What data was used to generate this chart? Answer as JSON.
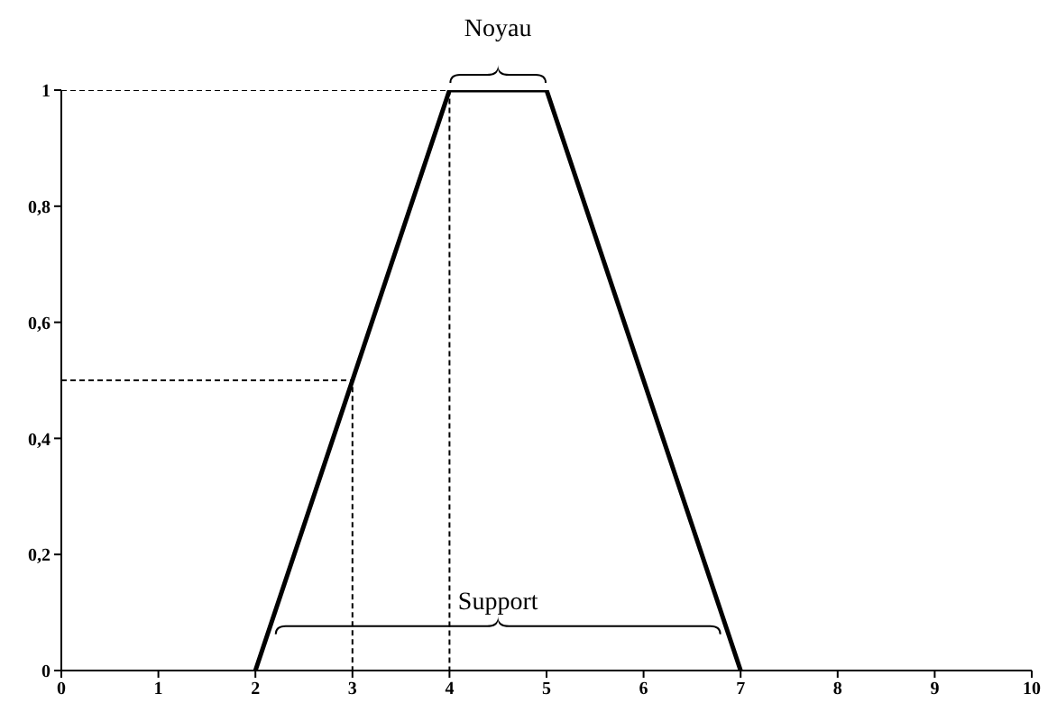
{
  "chart_data": {
    "type": "line",
    "xlim": [
      0,
      10
    ],
    "ylim": [
      0,
      1
    ],
    "xticks": [
      0,
      1,
      2,
      3,
      4,
      5,
      6,
      7,
      8,
      9,
      10
    ],
    "yticks": [
      0,
      {
        "value": 0.2,
        "label": "0,2"
      },
      {
        "value": 0.4,
        "label": "0,4"
      },
      {
        "value": 0.6,
        "label": "0,6"
      },
      {
        "value": 0.8,
        "label": "0,8"
      },
      1
    ],
    "grid": false,
    "legend": false,
    "marker": "none",
    "series": [
      {
        "color": "#000000",
        "x": [
          2,
          4,
          5,
          7
        ],
        "values": [
          0,
          1,
          1,
          0
        ],
        "line_style": "solid"
      },
      {
        "color": "#000000",
        "x": [
          0,
          4,
          4
        ],
        "values": [
          1,
          1,
          0
        ],
        "line_style": "dashed"
      },
      {
        "color": "#000000",
        "x": [
          0,
          3,
          3
        ],
        "values": [
          0.5,
          0.5,
          0
        ],
        "line_style": "dashed"
      }
    ],
    "annotations": [
      "Noyau",
      "Support"
    ]
  }
}
